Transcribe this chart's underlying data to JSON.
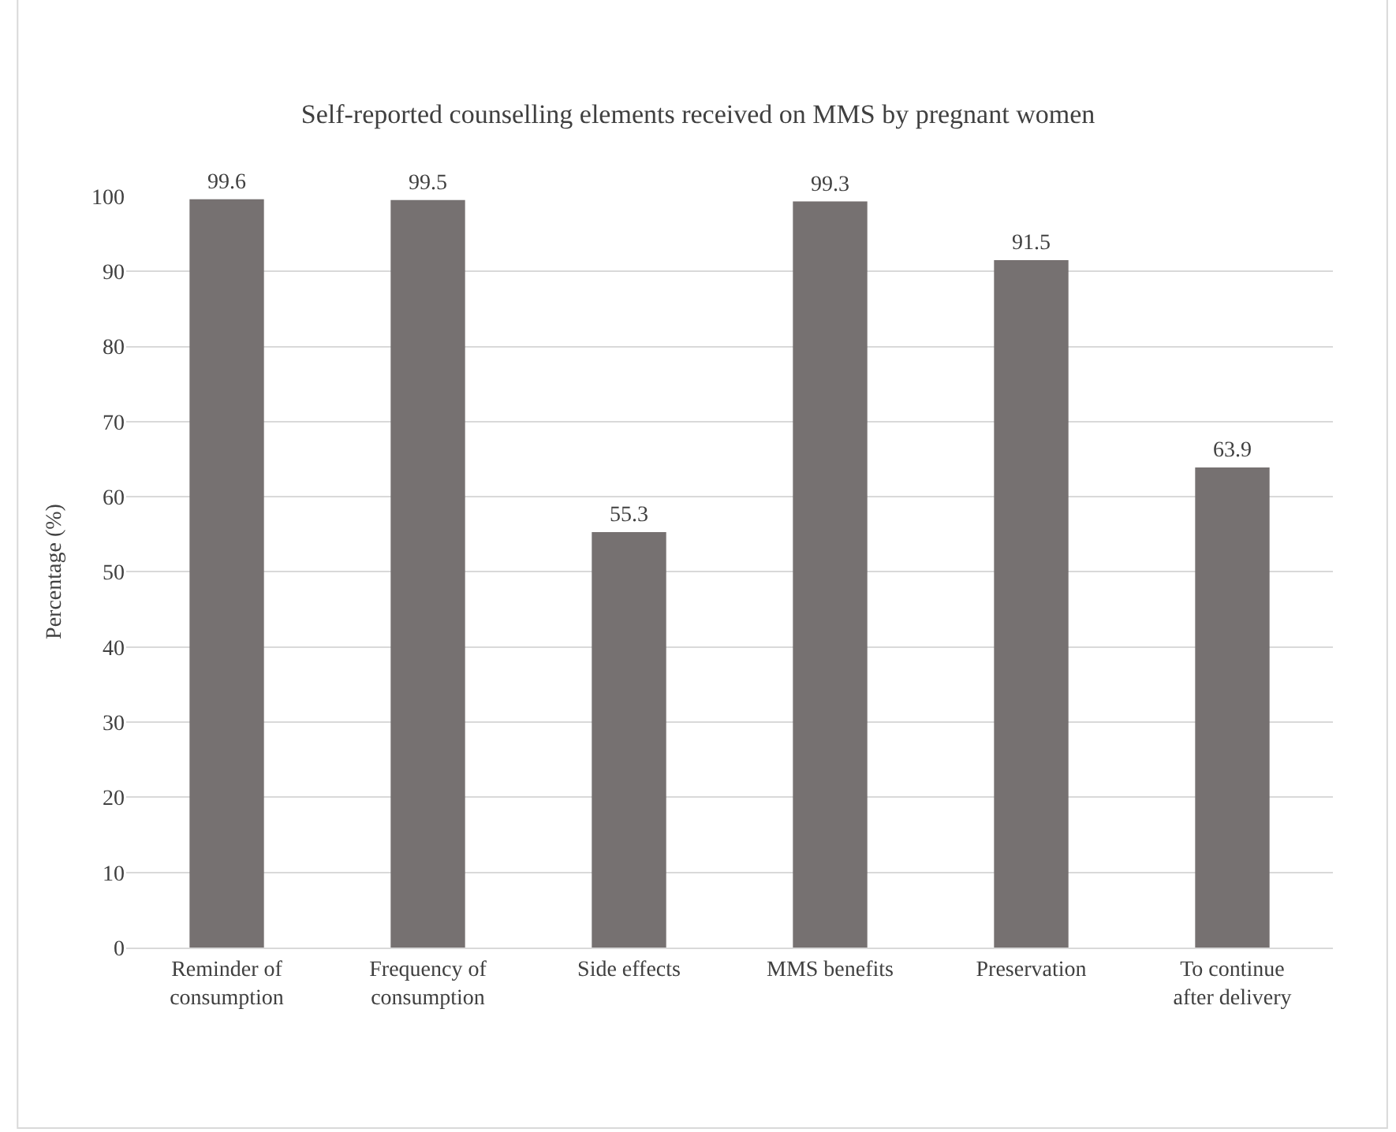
{
  "chart_data": {
    "type": "bar",
    "title": "Self-reported counselling elements received on MMS by pregnant women",
    "ylabel": "Percentage (%)",
    "categories": [
      "Reminder of consumption",
      "Frequency of consumption",
      "Side effects",
      "MMS benefits",
      "Preservation",
      "To continue after delivery"
    ],
    "values": [
      99.6,
      99.5,
      55.3,
      99.3,
      91.5,
      63.9
    ],
    "color": "#767171",
    "ylim": [
      0,
      100
    ],
    "yticks": [
      0,
      10,
      20,
      30,
      40,
      50,
      60,
      70,
      80,
      90,
      100
    ],
    "grid": "y",
    "data_labels": true
  }
}
